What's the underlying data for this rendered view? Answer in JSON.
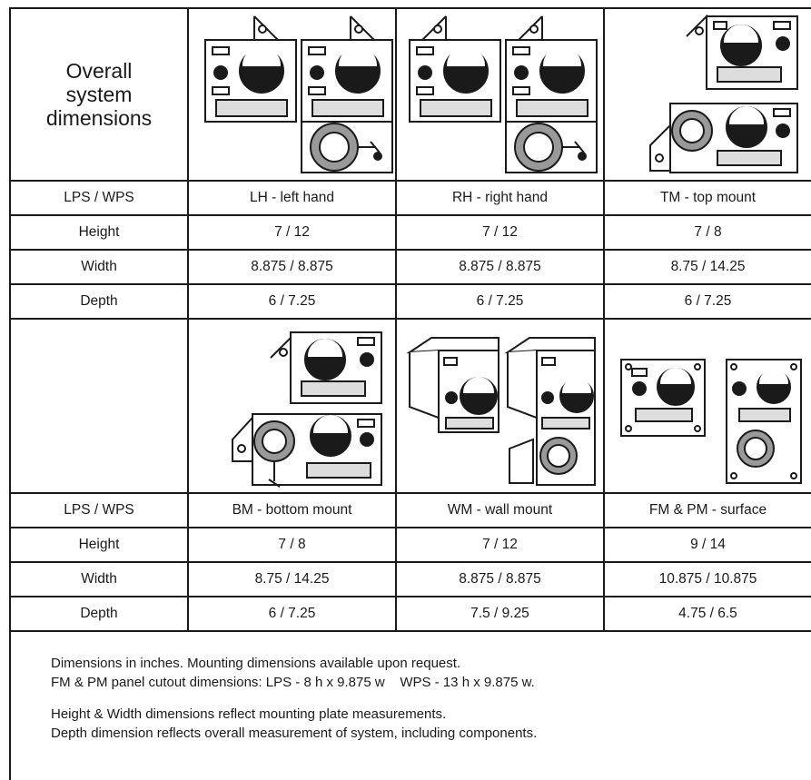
{
  "table": {
    "title_lines": [
      "Overall",
      "system",
      "dimensions"
    ],
    "groups": [
      {
        "header": "LPS / WPS",
        "columns": [
          "LH - left hand",
          "RH - right hand",
          "TM - top mount"
        ],
        "images": [
          "lh-left-hand-illustration",
          "rh-right-hand-illustration",
          "tm-top-mount-illustration"
        ],
        "rows": [
          {
            "label": "Height",
            "values": [
              "7 / 12",
              "7 / 12",
              "7 / 8"
            ]
          },
          {
            "label": "Width",
            "values": [
              "8.875 / 8.875",
              "8.875 / 8.875",
              "8.75 / 14.25"
            ]
          },
          {
            "label": "Depth",
            "values": [
              "6 / 7.25",
              "6 / 7.25",
              "6 / 7.25"
            ]
          }
        ]
      },
      {
        "header": "LPS / WPS",
        "columns": [
          "BM - bottom mount",
          "WM - wall mount",
          "FM & PM - surface"
        ],
        "images": [
          "bm-bottom-mount-illustration",
          "wm-wall-mount-illustration",
          "fm-pm-surface-illustration"
        ],
        "rows": [
          {
            "label": "Height",
            "values": [
              "7 / 8",
              "7 / 12",
              "9 / 14"
            ]
          },
          {
            "label": "Width",
            "values": [
              "8.75 / 14.25",
              "8.875 / 8.875",
              "10.875 / 10.875"
            ]
          },
          {
            "label": "Depth",
            "values": [
              "6 / 7.25",
              "7.5 / 9.25",
              "4.75 / 6.5"
            ]
          }
        ]
      }
    ]
  },
  "notes": [
    "Dimensions in inches. Mounting dimensions available upon request.",
    "FM & PM panel cutout dimensions: LPS - 8 h x 9.875 w    WPS - 13 h x 9.875 w.",
    "Height & Width dimensions reflect mounting plate measurements.",
    "Depth dimension reflects overall measurement of system, including components."
  ]
}
